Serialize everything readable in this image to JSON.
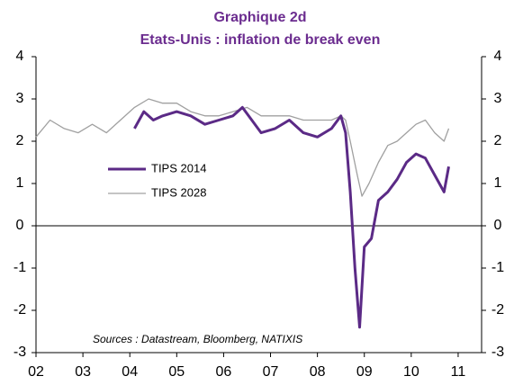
{
  "chart_data": {
    "type": "line",
    "title": "Graphique 2d",
    "subtitle": "Etats-Unis : inflation de break even",
    "annotation": "Sources : Datastream, Bloomberg, NATIXIS",
    "xlim": [
      2002,
      2011.5
    ],
    "xticks": [
      {
        "value": 2002,
        "label": "02"
      },
      {
        "value": 2003,
        "label": "03"
      },
      {
        "value": 2004,
        "label": "04"
      },
      {
        "value": 2005,
        "label": "05"
      },
      {
        "value": 2006,
        "label": "06"
      },
      {
        "value": 2007,
        "label": "07"
      },
      {
        "value": 2008,
        "label": "08"
      },
      {
        "value": 2009,
        "label": "09"
      },
      {
        "value": 2010,
        "label": "10"
      },
      {
        "value": 2011,
        "label": "11"
      }
    ],
    "ylim": [
      -3,
      4
    ],
    "yticks": [
      -3,
      -2,
      -1,
      0,
      1,
      2,
      3,
      4
    ],
    "y2lim": [
      -3,
      4
    ],
    "y2ticks": [
      -3,
      -2,
      -1,
      0,
      1,
      2,
      3,
      4
    ],
    "series": [
      {
        "name": "TIPS 2014",
        "color": "#5b2a86",
        "x": [
          2004.1,
          2004.3,
          2004.5,
          2004.7,
          2005.0,
          2005.3,
          2005.6,
          2005.9,
          2006.2,
          2006.4,
          2006.6,
          2006.8,
          2007.1,
          2007.4,
          2007.7,
          2008.0,
          2008.3,
          2008.5,
          2008.6,
          2008.7,
          2008.8,
          2008.9,
          2009.0,
          2009.15,
          2009.3,
          2009.5,
          2009.7,
          2009.9,
          2010.1,
          2010.3,
          2010.5,
          2010.7,
          2010.8
        ],
        "values": [
          2.3,
          2.7,
          2.5,
          2.6,
          2.7,
          2.6,
          2.4,
          2.5,
          2.6,
          2.8,
          2.5,
          2.2,
          2.3,
          2.5,
          2.2,
          2.1,
          2.3,
          2.6,
          2.2,
          0.8,
          -1.0,
          -2.4,
          -0.5,
          -0.3,
          0.6,
          0.8,
          1.1,
          1.5,
          1.7,
          1.6,
          1.2,
          0.8,
          1.4
        ]
      },
      {
        "name": "TIPS 2028",
        "color": "#a0a0a0",
        "x": [
          2002.0,
          2002.3,
          2002.6,
          2002.9,
          2003.2,
          2003.5,
          2003.8,
          2004.1,
          2004.4,
          2004.7,
          2005.0,
          2005.3,
          2005.6,
          2005.9,
          2006.2,
          2006.5,
          2006.8,
          2007.1,
          2007.4,
          2007.7,
          2008.0,
          2008.3,
          2008.5,
          2008.6,
          2008.7,
          2008.85,
          2008.95,
          2009.1,
          2009.3,
          2009.5,
          2009.7,
          2009.9,
          2010.1,
          2010.3,
          2010.5,
          2010.7,
          2010.8
        ],
        "values": [
          2.1,
          2.5,
          2.3,
          2.2,
          2.4,
          2.2,
          2.5,
          2.8,
          3.0,
          2.9,
          2.9,
          2.7,
          2.6,
          2.6,
          2.7,
          2.8,
          2.6,
          2.6,
          2.6,
          2.5,
          2.5,
          2.5,
          2.6,
          2.5,
          2.0,
          1.2,
          0.7,
          1.0,
          1.5,
          1.9,
          2.0,
          2.2,
          2.4,
          2.5,
          2.2,
          2.0,
          2.3
        ]
      }
    ]
  }
}
